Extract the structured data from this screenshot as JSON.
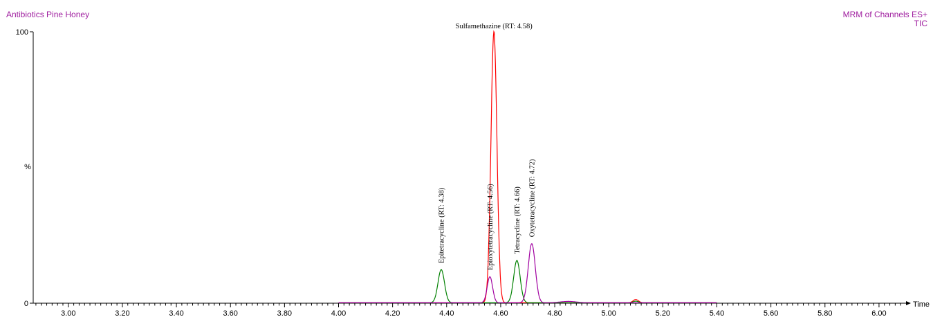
{
  "header": {
    "title": "Antibiotics Pine Honey",
    "channels": "MRM of Channels ES+",
    "trace": "TIC"
  },
  "chart_data": {
    "type": "line",
    "xlabel": "Time",
    "ylabel": "%",
    "xlim": [
      2.87,
      6.1
    ],
    "ylim": [
      0,
      100
    ],
    "x_ticks": [
      "3.00",
      "3.20",
      "3.40",
      "3.60",
      "3.80",
      "4.00",
      "4.20",
      "4.40",
      "4.60",
      "4.80",
      "5.00",
      "5.20",
      "5.40",
      "5.60",
      "5.80",
      "6.00"
    ],
    "y_ticks": [
      "0",
      "100"
    ],
    "grid": false,
    "series": [
      {
        "color": "#ff0000",
        "range": [
          4.0,
          5.4
        ],
        "peaks": [
          {
            "rt": 4.575,
            "height": 100,
            "width": 0.011
          },
          {
            "rt": 5.1,
            "height": 1.2,
            "width": 0.01
          }
        ]
      },
      {
        "color": "#008000",
        "range": [
          4.0,
          5.4
        ],
        "peaks": [
          {
            "rt": 4.38,
            "height": 12.2,
            "width": 0.012
          },
          {
            "rt": 4.66,
            "height": 15.6,
            "width": 0.012
          },
          {
            "rt": 5.1,
            "height": 0.6,
            "width": 0.01
          }
        ]
      },
      {
        "color": "#a000a0",
        "range": [
          4.0,
          5.4
        ],
        "peaks": [
          {
            "rt": 4.56,
            "height": 9.6,
            "width": 0.01
          },
          {
            "rt": 4.715,
            "height": 21.8,
            "width": 0.013
          },
          {
            "rt": 4.85,
            "height": 0.5,
            "width": 0.03
          }
        ]
      }
    ],
    "annotations": [
      {
        "text": "Sulfamethazine (RT: 4.58)",
        "x": 4.575,
        "y": 100,
        "rotated": false
      },
      {
        "text": "Epitetracycline (RT: 4.38)",
        "x": 4.38,
        "y": 12.2,
        "rotated": true
      },
      {
        "text": "Epioxytetracycline (RT: 4.56)",
        "x": 4.56,
        "y": 9.6,
        "rotated": true
      },
      {
        "text": "Tetracycline (RT: 4.66)",
        "x": 4.66,
        "y": 15.6,
        "rotated": true
      },
      {
        "text": "Oxytetracycline (RT: 4.72)",
        "x": 4.715,
        "y": 21.8,
        "rotated": true
      }
    ]
  }
}
